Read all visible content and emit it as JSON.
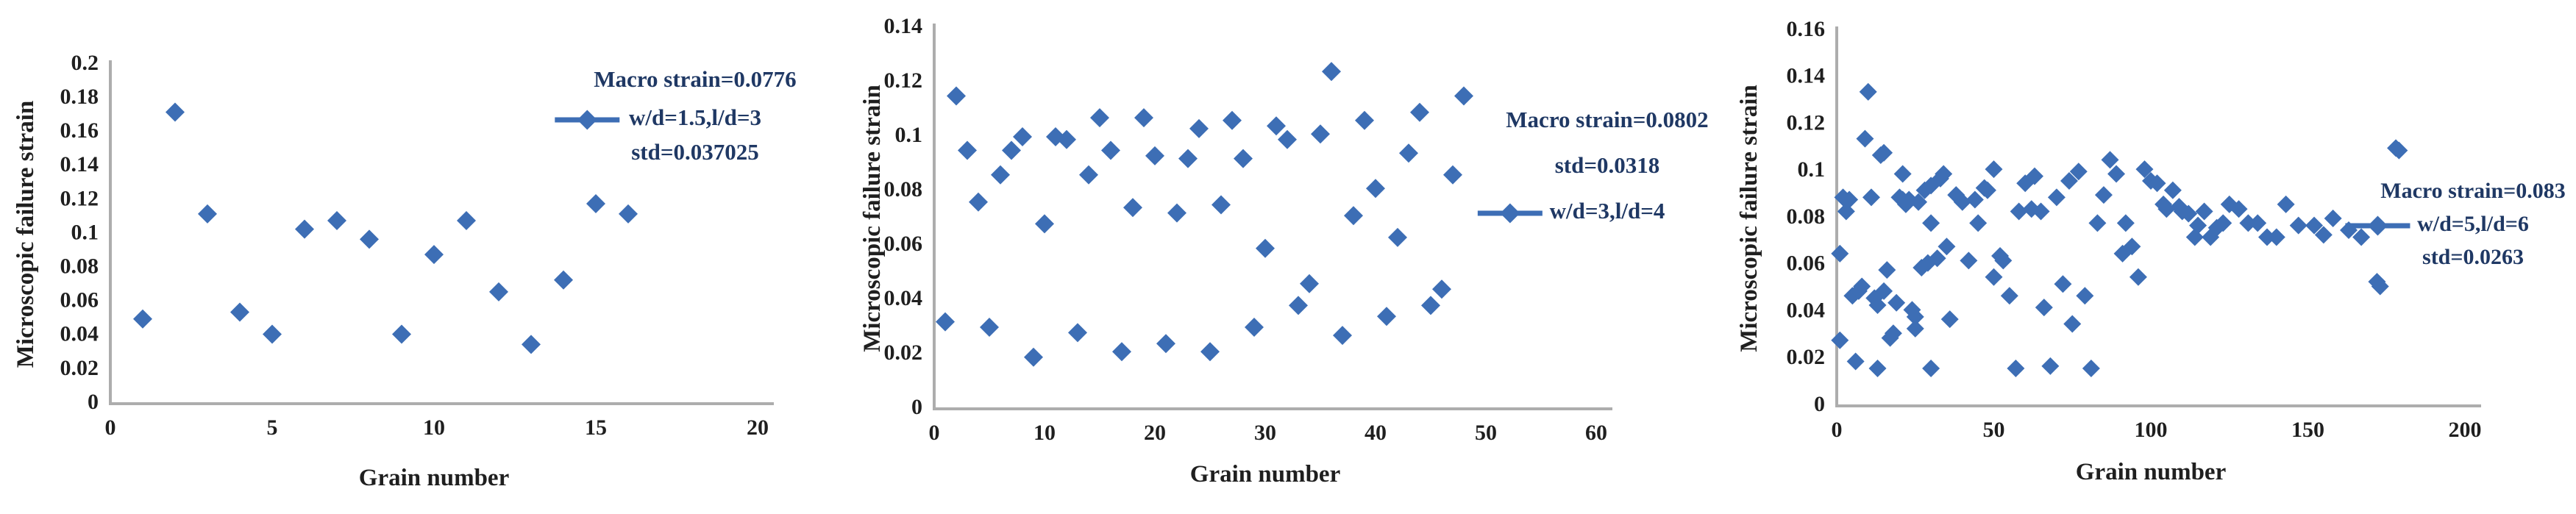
{
  "figure": {
    "description": "Three scatter plots of microscopic failure strain versus grain number",
    "shared_xlabel": "Grain number",
    "shared_ylabel": "Microscopic failure strain"
  },
  "colors": {
    "marker": "#3D6EB5",
    "legend_text": "#1F3864",
    "axis_line": "#ADADAD",
    "tick_text": "#1F1F1F",
    "background": "#FFFFFF"
  },
  "chart_data": [
    {
      "type": "scatter",
      "title": "",
      "xlabel": "Grain number",
      "ylabel": "Microscopic failure strain",
      "xlim": [
        0,
        20
      ],
      "ylim": [
        0,
        0.2
      ],
      "xticks": [
        "0",
        "5",
        "10",
        "15",
        "20"
      ],
      "yticks": [
        "0",
        "0.02",
        "0.04",
        "0.06",
        "0.08",
        "0.1",
        "0.12",
        "0.14",
        "0.16",
        "0.18",
        "0.2"
      ],
      "grid": false,
      "legend": {
        "position": "top-right-inside",
        "lines": [
          {
            "text": "Macro strain=0.0776",
            "marker": false
          },
          {
            "text": "w/d=1.5,l/d=3",
            "marker": true
          },
          {
            "text": "std=0.037025",
            "marker": false
          }
        ]
      },
      "points": [
        [
          1,
          0.05
        ],
        [
          2,
          0.172
        ],
        [
          3,
          0.112
        ],
        [
          4,
          0.054
        ],
        [
          5,
          0.041
        ],
        [
          6,
          0.103
        ],
        [
          7,
          0.108
        ],
        [
          8,
          0.097
        ],
        [
          9,
          0.041
        ],
        [
          10,
          0.088
        ],
        [
          11,
          0.108
        ],
        [
          12,
          0.066
        ],
        [
          13,
          0.035
        ],
        [
          14,
          0.073
        ],
        [
          15,
          0.118
        ],
        [
          16,
          0.112
        ]
      ]
    },
    {
      "type": "scatter",
      "title": "",
      "xlabel": "Grain number",
      "ylabel": "Microscopic failure strain",
      "xlim": [
        0,
        60
      ],
      "ylim": [
        0,
        0.14
      ],
      "xticks": [
        "0",
        "10",
        "20",
        "30",
        "40",
        "50",
        "60"
      ],
      "yticks": [
        "0",
        "0.02",
        "0.04",
        "0.06",
        "0.08",
        "0.1",
        "0.12",
        "0.14"
      ],
      "grid": false,
      "legend": {
        "position": "right-outside",
        "lines": [
          {
            "text": "Macro strain=0.0802",
            "marker": false
          },
          {
            "text": "std=0.0318",
            "marker": false
          },
          {
            "text": "w/d=3,l/d=4",
            "marker": true
          }
        ]
      },
      "points": [
        [
          1,
          0.032
        ],
        [
          2,
          0.115
        ],
        [
          3,
          0.095
        ],
        [
          4,
          0.076
        ],
        [
          5,
          0.03
        ],
        [
          6,
          0.086
        ],
        [
          7,
          0.095
        ],
        [
          8,
          0.1
        ],
        [
          9,
          0.019
        ],
        [
          10,
          0.068
        ],
        [
          11,
          0.1
        ],
        [
          12,
          0.099
        ],
        [
          13,
          0.028
        ],
        [
          14,
          0.086
        ],
        [
          15,
          0.107
        ],
        [
          16,
          0.095
        ],
        [
          17,
          0.021
        ],
        [
          18,
          0.074
        ],
        [
          19,
          0.107
        ],
        [
          20,
          0.093
        ],
        [
          21,
          0.024
        ],
        [
          22,
          0.072
        ],
        [
          23,
          0.092
        ],
        [
          24,
          0.103
        ],
        [
          25,
          0.021
        ],
        [
          26,
          0.075
        ],
        [
          27,
          0.106
        ],
        [
          28,
          0.092
        ],
        [
          29,
          0.03
        ],
        [
          30,
          0.059
        ],
        [
          31,
          0.104
        ],
        [
          32,
          0.099
        ],
        [
          33,
          0.038
        ],
        [
          34,
          0.046
        ],
        [
          35,
          0.101
        ],
        [
          36,
          0.124
        ],
        [
          37,
          0.027
        ],
        [
          38,
          0.071
        ],
        [
          39,
          0.106
        ],
        [
          40,
          0.081
        ],
        [
          41,
          0.034
        ],
        [
          42,
          0.063
        ],
        [
          43,
          0.094
        ],
        [
          44,
          0.109
        ],
        [
          45,
          0.038
        ],
        [
          46,
          0.044
        ],
        [
          47,
          0.086
        ],
        [
          48,
          0.115
        ]
      ]
    },
    {
      "type": "scatter",
      "title": "",
      "xlabel": "Grain number",
      "ylabel": "Microscopic failure strain",
      "xlim": [
        0,
        200
      ],
      "ylim": [
        0,
        0.16
      ],
      "xticks": [
        "0",
        "50",
        "100",
        "150",
        "200"
      ],
      "yticks": [
        "0",
        "0.02",
        "0.04",
        "0.06",
        "0.08",
        "0.1",
        "0.12",
        "0.14",
        "0.16"
      ],
      "grid": false,
      "legend": {
        "position": "right-inside",
        "lines": [
          {
            "text": "Macro strain=0.083",
            "marker": false
          },
          {
            "text": "w/d=5,l/d=6",
            "marker": true
          },
          {
            "text": "std=0.0263",
            "marker": false
          }
        ]
      },
      "points": [
        [
          1,
          0.065
        ],
        [
          1,
          0.028
        ],
        [
          2,
          0.089
        ],
        [
          3,
          0.083
        ],
        [
          4,
          0.088
        ],
        [
          5,
          0.047
        ],
        [
          6,
          0.019
        ],
        [
          7,
          0.049
        ],
        [
          8,
          0.051
        ],
        [
          9,
          0.114
        ],
        [
          10,
          0.134
        ],
        [
          11,
          0.089
        ],
        [
          12,
          0.046
        ],
        [
          13,
          0.043
        ],
        [
          13,
          0.016
        ],
        [
          14,
          0.107
        ],
        [
          15,
          0.108
        ],
        [
          15,
          0.049
        ],
        [
          16,
          0.058
        ],
        [
          17,
          0.029
        ],
        [
          18,
          0.031
        ],
        [
          19,
          0.044
        ],
        [
          20,
          0.089
        ],
        [
          21,
          0.099
        ],
        [
          21,
          0.088
        ],
        [
          22,
          0.086
        ],
        [
          23,
          0.088
        ],
        [
          24,
          0.041
        ],
        [
          25,
          0.038
        ],
        [
          25,
          0.033
        ],
        [
          26,
          0.087
        ],
        [
          27,
          0.059
        ],
        [
          28,
          0.092
        ],
        [
          29,
          0.061
        ],
        [
          30,
          0.094
        ],
        [
          30,
          0.078
        ],
        [
          30,
          0.016
        ],
        [
          32,
          0.063
        ],
        [
          33,
          0.097
        ],
        [
          34,
          0.099
        ],
        [
          35,
          0.068
        ],
        [
          36,
          0.037
        ],
        [
          38,
          0.09
        ],
        [
          40,
          0.087
        ],
        [
          42,
          0.062
        ],
        [
          44,
          0.088
        ],
        [
          45,
          0.078
        ],
        [
          47,
          0.093
        ],
        [
          48,
          0.092
        ],
        [
          50,
          0.101
        ],
        [
          50,
          0.055
        ],
        [
          52,
          0.064
        ],
        [
          53,
          0.062
        ],
        [
          55,
          0.047
        ],
        [
          57,
          0.016
        ],
        [
          58,
          0.083
        ],
        [
          60,
          0.095
        ],
        [
          62,
          0.084
        ],
        [
          63,
          0.098
        ],
        [
          65,
          0.083
        ],
        [
          66,
          0.042
        ],
        [
          68,
          0.017
        ],
        [
          70,
          0.089
        ],
        [
          72,
          0.052
        ],
        [
          74,
          0.096
        ],
        [
          75,
          0.035
        ],
        [
          77,
          0.1
        ],
        [
          79,
          0.047
        ],
        [
          81,
          0.016
        ],
        [
          83,
          0.078
        ],
        [
          85,
          0.09
        ],
        [
          87,
          0.105
        ],
        [
          89,
          0.099
        ],
        [
          91,
          0.065
        ],
        [
          92,
          0.078
        ],
        [
          94,
          0.068
        ],
        [
          96,
          0.055
        ],
        [
          98,
          0.101
        ],
        [
          100,
          0.096
        ],
        [
          102,
          0.095
        ],
        [
          104,
          0.086
        ],
        [
          105,
          0.084
        ],
        [
          107,
          0.092
        ],
        [
          109,
          0.085
        ],
        [
          110,
          0.083
        ],
        [
          112,
          0.082
        ],
        [
          114,
          0.072
        ],
        [
          115,
          0.077
        ],
        [
          117,
          0.083
        ],
        [
          119,
          0.072
        ],
        [
          121,
          0.076
        ],
        [
          123,
          0.078
        ],
        [
          125,
          0.086
        ],
        [
          128,
          0.084
        ],
        [
          131,
          0.078
        ],
        [
          134,
          0.078
        ],
        [
          137,
          0.072
        ],
        [
          140,
          0.072
        ],
        [
          143,
          0.086
        ],
        [
          147,
          0.077
        ],
        [
          152,
          0.077
        ],
        [
          155,
          0.073
        ],
        [
          158,
          0.08
        ],
        [
          163,
          0.075
        ],
        [
          167,
          0.072
        ],
        [
          172,
          0.053
        ],
        [
          173,
          0.051
        ],
        [
          178,
          0.11
        ],
        [
          179,
          0.109
        ]
      ]
    }
  ]
}
